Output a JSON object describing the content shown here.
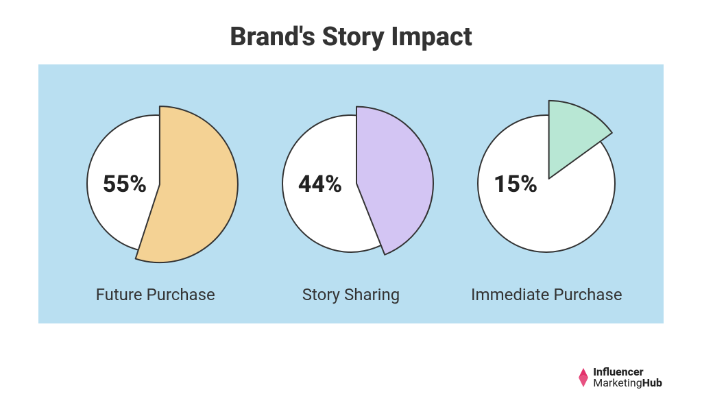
{
  "title": "Brand's Story Impact",
  "title_fontsize": 38,
  "title_color": "#333333",
  "background_color": "#ffffff",
  "panel_color": "#b9dff1",
  "label_fontsize": 24,
  "label_color": "#333333",
  "pct_fontsize": 34,
  "pct_color": "#222222",
  "circle_stroke": "#333333",
  "circle_stroke_width": 2,
  "circle_fill": "#ffffff",
  "charts": [
    {
      "id": "future-purchase",
      "label": "Future Purchase",
      "percent": 55,
      "percent_text": "55%",
      "slice_color": "#f4d294",
      "slice_stroke": "#333333",
      "slice_radius_scale": 1.14,
      "slice_offset_deg": 2,
      "slice_offset_dist": 6
    },
    {
      "id": "story-sharing",
      "label": "Story Sharing",
      "percent": 44,
      "percent_text": "44%",
      "slice_color": "#d3c5f3",
      "slice_stroke": "#333333",
      "slice_radius_scale": 1.12,
      "slice_offset_deg": 8,
      "slice_offset_dist": 8
    },
    {
      "id": "immediate-purchase",
      "label": "Immediate Purchase",
      "percent": 15,
      "percent_text": "15%",
      "slice_color": "#b8e7d4",
      "slice_stroke": "#333333",
      "slice_radius_scale": 1.14,
      "slice_offset_deg": 0,
      "slice_offset_dist": 8
    }
  ],
  "logo": {
    "line1_bold": "Influencer",
    "line2_plain": "Marketing",
    "line2_bold": "Hub",
    "accent_color": "#e3326b"
  }
}
